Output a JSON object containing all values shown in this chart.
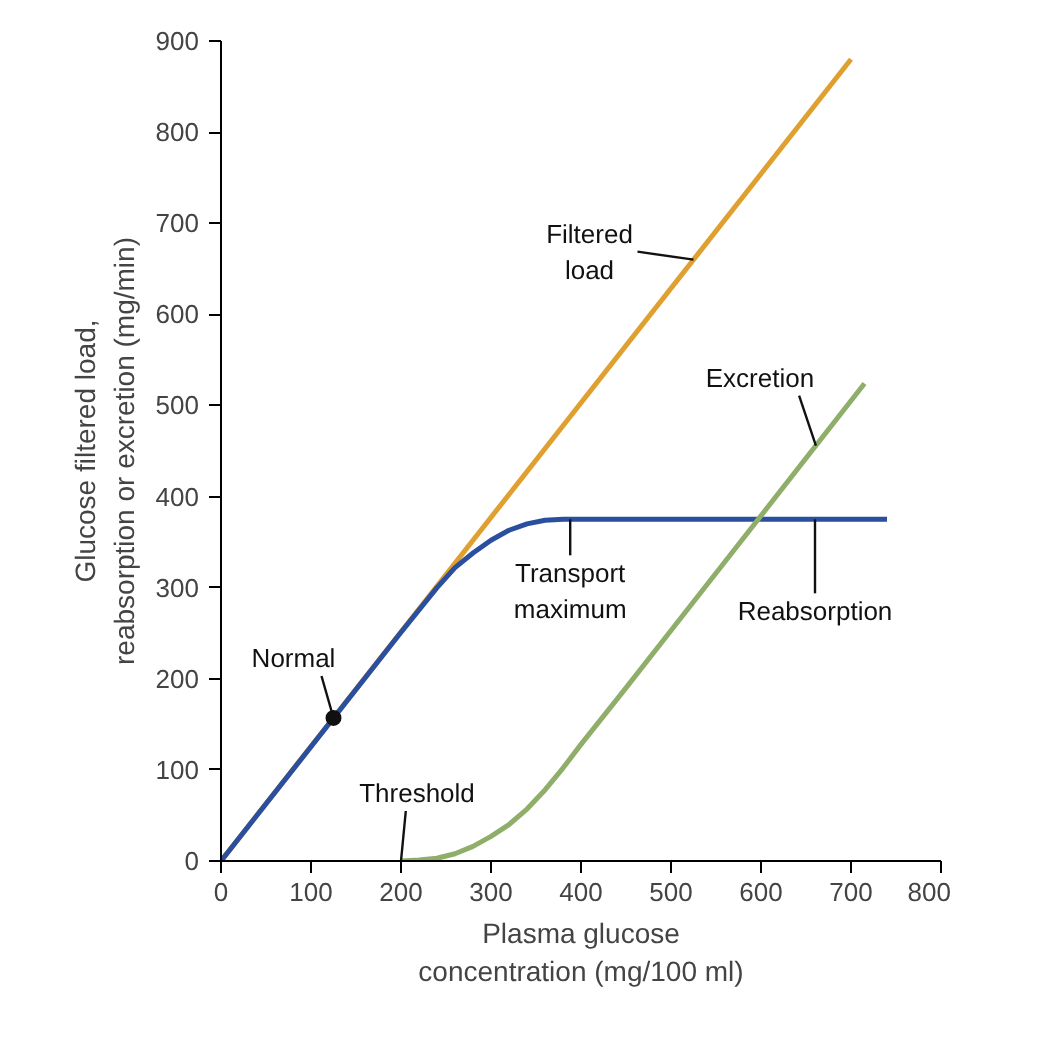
{
  "chart_data": {
    "type": "line",
    "xlabel": "Plasma glucose concentration (mg/100 ml)",
    "ylabel": "Glucose filtered load, reabsorption or excretion (mg/min)",
    "xlim": [
      0,
      800
    ],
    "ylim": [
      0,
      900
    ],
    "xticks": [
      0,
      100,
      200,
      300,
      400,
      500,
      600,
      700,
      800
    ],
    "yticks": [
      0,
      100,
      200,
      300,
      400,
      500,
      600,
      700,
      800,
      900
    ],
    "grid": false,
    "line_style": "solid",
    "marker": "none",
    "series": [
      {
        "color": "#e0a030",
        "x": [
          0,
          700
        ],
        "values": [
          0,
          880
        ]
      },
      {
        "color": "#2a4f9f",
        "x": [
          0,
          200,
          240,
          260,
          280,
          300,
          320,
          340,
          360,
          380,
          740
        ],
        "values": [
          0,
          251,
          300,
          322,
          338,
          352,
          363,
          370,
          374,
          375,
          375
        ]
      },
      {
        "color": "#8fae6a",
        "x": [
          200,
          220,
          240,
          260,
          280,
          300,
          320,
          340,
          360,
          380,
          400,
          450,
          500,
          600,
          715
        ],
        "values": [
          0,
          1,
          3,
          8,
          16,
          27,
          40,
          57,
          78,
          102,
          128,
          190,
          253,
          379,
          524
        ]
      },
      {
        "type": "scatter",
        "marker": "circle",
        "color": "#111111",
        "x": [
          125
        ],
        "values": [
          157
        ]
      }
    ],
    "annotations": [
      {
        "text": "Filtered load",
        "x": 525,
        "y": 660
      },
      {
        "text": "Excretion",
        "x": 661,
        "y": 456
      },
      {
        "text": "Transport maximum",
        "x": 388,
        "y": 375
      },
      {
        "text": "Reabsorption",
        "x": 660,
        "y": 375
      },
      {
        "text": "Threshold",
        "x": 200,
        "y": 0
      },
      {
        "text": "Normal",
        "x": 125,
        "y": 157
      }
    ]
  }
}
